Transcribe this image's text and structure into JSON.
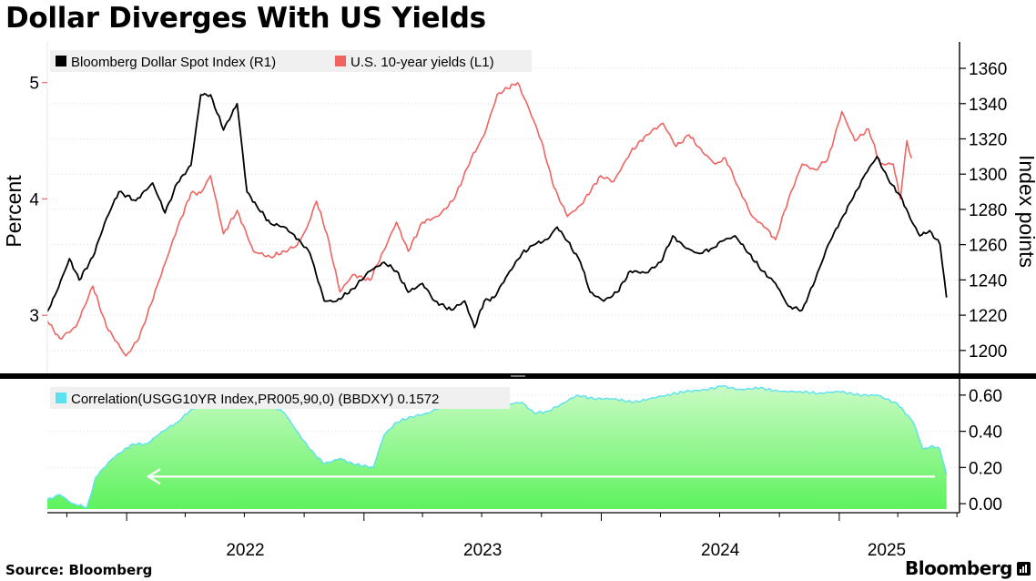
{
  "header": {
    "title": "Dollar Diverges With US Yields"
  },
  "footer": {
    "source": "Source: Bloomberg",
    "brand": "Bloomberg"
  },
  "colors": {
    "dxy": "#000000",
    "yield": "#ef6461",
    "corr_line": "#5ce1f0",
    "corr_fill": "#5ef25e",
    "arrow": "#ffffff"
  },
  "chart_data": [
    {
      "type": "line",
      "panel": "top",
      "x_ticks": [
        "2022",
        "2023",
        "2024",
        "2025"
      ],
      "left_axis": {
        "label": "Percent",
        "ticks": [
          "3",
          "4",
          "5"
        ],
        "range": [
          2.5,
          5.35
        ]
      },
      "right_axis": {
        "label": "Index points",
        "ticks": [
          "1200",
          "1220",
          "1240",
          "1260",
          "1280",
          "1300",
          "1320",
          "1340",
          "1360"
        ],
        "range": [
          1187,
          1375
        ]
      },
      "legend": [
        "Bloomberg Dollar Spot Index (R1)",
        "U.S. 10-year yields (L1)"
      ],
      "series": [
        {
          "name": "U.S. 10-year yields (L1)",
          "axis": "left",
          "points": [
            [
              "2021-09-01",
              2.95
            ],
            [
              "2021-09-20",
              2.8
            ],
            [
              "2021-10-15",
              2.9
            ],
            [
              "2021-11-10",
              3.25
            ],
            [
              "2021-12-01",
              2.9
            ],
            [
              "2021-12-31",
              2.65
            ],
            [
              "2022-01-20",
              2.8
            ],
            [
              "2022-02-20",
              3.3
            ],
            [
              "2022-03-20",
              3.75
            ],
            [
              "2022-04-10",
              4.05
            ],
            [
              "2022-04-25",
              4.05
            ],
            [
              "2022-05-10",
              4.2
            ],
            [
              "2022-05-30",
              3.7
            ],
            [
              "2022-06-20",
              3.9
            ],
            [
              "2022-07-15",
              3.55
            ],
            [
              "2022-08-10",
              3.5
            ],
            [
              "2022-09-01",
              3.55
            ],
            [
              "2022-09-20",
              3.6
            ],
            [
              "2022-10-05",
              3.75
            ],
            [
              "2022-10-20",
              3.98
            ],
            [
              "2022-11-05",
              3.7
            ],
            [
              "2022-11-25",
              3.2
            ],
            [
              "2022-12-15",
              3.35
            ],
            [
              "2023-01-10",
              3.3
            ],
            [
              "2023-01-31",
              3.55
            ],
            [
              "2023-02-20",
              3.8
            ],
            [
              "2023-03-10",
              3.55
            ],
            [
              "2023-04-01",
              3.8
            ],
            [
              "2023-04-25",
              3.85
            ],
            [
              "2023-05-20",
              4.0
            ],
            [
              "2023-06-15",
              4.35
            ],
            [
              "2023-07-05",
              4.55
            ],
            [
              "2023-07-25",
              4.9
            ],
            [
              "2023-08-10",
              4.95
            ],
            [
              "2023-08-25",
              5.0
            ],
            [
              "2023-09-10",
              4.8
            ],
            [
              "2023-10-01",
              4.5
            ],
            [
              "2023-10-20",
              4.1
            ],
            [
              "2023-11-10",
              3.85
            ],
            [
              "2023-12-01",
              3.95
            ],
            [
              "2023-12-31",
              4.2
            ],
            [
              "2024-01-20",
              4.15
            ],
            [
              "2024-02-15",
              4.4
            ],
            [
              "2024-03-10",
              4.55
            ],
            [
              "2024-04-05",
              4.65
            ],
            [
              "2024-04-25",
              4.45
            ],
            [
              "2024-05-15",
              4.55
            ],
            [
              "2024-06-05",
              4.4
            ],
            [
              "2024-06-25",
              4.3
            ],
            [
              "2024-07-10",
              4.35
            ],
            [
              "2024-07-30",
              4.1
            ],
            [
              "2024-08-20",
              3.85
            ],
            [
              "2024-09-10",
              3.75
            ],
            [
              "2024-09-25",
              3.65
            ],
            [
              "2024-10-15",
              4.0
            ],
            [
              "2024-11-05",
              4.3
            ],
            [
              "2024-11-25",
              4.25
            ],
            [
              "2024-12-15",
              4.35
            ],
            [
              "2025-01-05",
              4.75
            ],
            [
              "2025-01-25",
              4.5
            ],
            [
              "2025-02-15",
              4.6
            ],
            [
              "2025-03-05",
              4.3
            ],
            [
              "2025-03-25",
              4.3
            ],
            [
              "2025-04-05",
              4.0
            ],
            [
              "2025-04-15",
              4.5
            ],
            [
              "2025-04-22",
              4.35
            ]
          ]
        },
        {
          "name": "Bloomberg Dollar Spot Index (R1)",
          "axis": "right",
          "points": [
            [
              "2021-09-01",
              1222
            ],
            [
              "2021-09-15",
              1233
            ],
            [
              "2021-10-05",
              1252
            ],
            [
              "2021-10-20",
              1240
            ],
            [
              "2021-11-10",
              1253
            ],
            [
              "2021-12-01",
              1275
            ],
            [
              "2021-12-20",
              1290
            ],
            [
              "2022-01-15",
              1285
            ],
            [
              "2022-02-10",
              1295
            ],
            [
              "2022-03-01",
              1278
            ],
            [
              "2022-03-20",
              1295
            ],
            [
              "2022-04-10",
              1305
            ],
            [
              "2022-04-25",
              1345
            ],
            [
              "2022-05-10",
              1345
            ],
            [
              "2022-05-30",
              1325
            ],
            [
              "2022-06-20",
              1340
            ],
            [
              "2022-07-05",
              1290
            ],
            [
              "2022-07-20",
              1282
            ],
            [
              "2022-08-10",
              1272
            ],
            [
              "2022-09-01",
              1270
            ],
            [
              "2022-09-25",
              1262
            ],
            [
              "2022-10-10",
              1255
            ],
            [
              "2022-11-01",
              1228
            ],
            [
              "2022-11-20",
              1228
            ],
            [
              "2022-12-15",
              1235
            ],
            [
              "2023-01-10",
              1245
            ],
            [
              "2023-02-01",
              1250
            ],
            [
              "2023-02-20",
              1245
            ],
            [
              "2023-03-10",
              1233
            ],
            [
              "2023-04-01",
              1238
            ],
            [
              "2023-04-20",
              1228
            ],
            [
              "2023-05-15",
              1223
            ],
            [
              "2023-06-05",
              1228
            ],
            [
              "2023-06-20",
              1213
            ],
            [
              "2023-07-05",
              1228
            ],
            [
              "2023-07-20",
              1230
            ],
            [
              "2023-08-10",
              1243
            ],
            [
              "2023-09-01",
              1255
            ],
            [
              "2023-09-20",
              1260
            ],
            [
              "2023-10-10",
              1263
            ],
            [
              "2023-10-25",
              1270
            ],
            [
              "2023-11-10",
              1262
            ],
            [
              "2023-11-30",
              1250
            ],
            [
              "2023-12-15",
              1233
            ],
            [
              "2024-01-05",
              1228
            ],
            [
              "2024-01-25",
              1233
            ],
            [
              "2024-02-15",
              1245
            ],
            [
              "2024-03-10",
              1244
            ],
            [
              "2024-04-01",
              1250
            ],
            [
              "2024-04-20",
              1265
            ],
            [
              "2024-05-10",
              1258
            ],
            [
              "2024-05-30",
              1255
            ],
            [
              "2024-06-20",
              1258
            ],
            [
              "2024-07-05",
              1262
            ],
            [
              "2024-07-25",
              1265
            ],
            [
              "2024-08-15",
              1255
            ],
            [
              "2024-09-05",
              1245
            ],
            [
              "2024-09-25",
              1238
            ],
            [
              "2024-10-15",
              1225
            ],
            [
              "2024-11-05",
              1223
            ],
            [
              "2024-11-25",
              1240
            ],
            [
              "2024-12-15",
              1260
            ],
            [
              "2025-01-05",
              1275
            ],
            [
              "2025-01-20",
              1285
            ],
            [
              "2025-02-10",
              1300
            ],
            [
              "2025-02-28",
              1310
            ],
            [
              "2025-03-20",
              1295
            ],
            [
              "2025-04-05",
              1288
            ],
            [
              "2025-04-20",
              1275
            ],
            [
              "2025-05-05",
              1265
            ],
            [
              "2025-05-20",
              1268
            ],
            [
              "2025-06-05",
              1260
            ],
            [
              "2025-06-15",
              1230
            ]
          ]
        }
      ]
    },
    {
      "type": "area",
      "panel": "bottom",
      "x_ticks": [
        "2022",
        "2023",
        "2024",
        "2025"
      ],
      "right_axis": {
        "ticks": [
          "0.00",
          "0.20",
          "0.40",
          "0.60"
        ],
        "range": [
          -0.05,
          0.69
        ]
      },
      "legend": [
        "Correlation(USGG10YR Index,PR005,90,0) (BBDXY) 0.1572"
      ],
      "series": [
        {
          "name": "Correlation(USGG10YR Index,PR005,90,0) (BBDXY) 0.1572",
          "points": [
            [
              "2021-09-01",
              0.02
            ],
            [
              "2021-09-20",
              0.05
            ],
            [
              "2021-10-10",
              0.0
            ],
            [
              "2021-11-01",
              -0.02
            ],
            [
              "2021-11-15",
              0.15
            ],
            [
              "2021-12-10",
              0.25
            ],
            [
              "2022-01-10",
              0.33
            ],
            [
              "2022-02-01",
              0.33
            ],
            [
              "2022-02-25",
              0.4
            ],
            [
              "2022-03-20",
              0.45
            ],
            [
              "2022-04-10",
              0.52
            ],
            [
              "2022-05-01",
              0.55
            ],
            [
              "2022-05-20",
              0.56
            ],
            [
              "2022-06-15",
              0.55
            ],
            [
              "2022-07-10",
              0.57
            ],
            [
              "2022-08-10",
              0.55
            ],
            [
              "2022-09-01",
              0.5
            ],
            [
              "2022-09-20",
              0.4
            ],
            [
              "2022-10-10",
              0.3
            ],
            [
              "2022-11-01",
              0.22
            ],
            [
              "2022-11-25",
              0.25
            ],
            [
              "2022-12-15",
              0.22
            ],
            [
              "2023-01-15",
              0.2
            ],
            [
              "2023-02-01",
              0.38
            ],
            [
              "2023-02-20",
              0.45
            ],
            [
              "2023-03-15",
              0.48
            ],
            [
              "2023-04-10",
              0.5
            ],
            [
              "2023-05-01",
              0.54
            ],
            [
              "2023-05-25",
              0.58
            ],
            [
              "2023-06-20",
              0.6
            ],
            [
              "2023-07-15",
              0.58
            ],
            [
              "2023-08-10",
              0.55
            ],
            [
              "2023-09-01",
              0.56
            ],
            [
              "2023-09-20",
              0.5
            ],
            [
              "2023-10-10",
              0.51
            ],
            [
              "2023-11-01",
              0.55
            ],
            [
              "2023-11-25",
              0.6
            ],
            [
              "2023-12-20",
              0.58
            ],
            [
              "2024-01-20",
              0.58
            ],
            [
              "2024-02-20",
              0.56
            ],
            [
              "2024-03-15",
              0.58
            ],
            [
              "2024-04-10",
              0.6
            ],
            [
              "2024-05-10",
              0.62
            ],
            [
              "2024-06-10",
              0.63
            ],
            [
              "2024-07-05",
              0.65
            ],
            [
              "2024-08-01",
              0.63
            ],
            [
              "2024-09-01",
              0.64
            ],
            [
              "2024-10-01",
              0.62
            ],
            [
              "2024-11-01",
              0.62
            ],
            [
              "2024-12-01",
              0.61
            ],
            [
              "2025-01-01",
              0.62
            ],
            [
              "2025-02-01",
              0.6
            ],
            [
              "2025-03-01",
              0.6
            ],
            [
              "2025-04-01",
              0.55
            ],
            [
              "2025-04-25",
              0.45
            ],
            [
              "2025-05-10",
              0.3
            ],
            [
              "2025-05-25",
              0.32
            ],
            [
              "2025-06-05",
              0.3
            ],
            [
              "2025-06-15",
              0.16
            ]
          ]
        }
      ],
      "annotation": "arrow pointing left"
    }
  ]
}
